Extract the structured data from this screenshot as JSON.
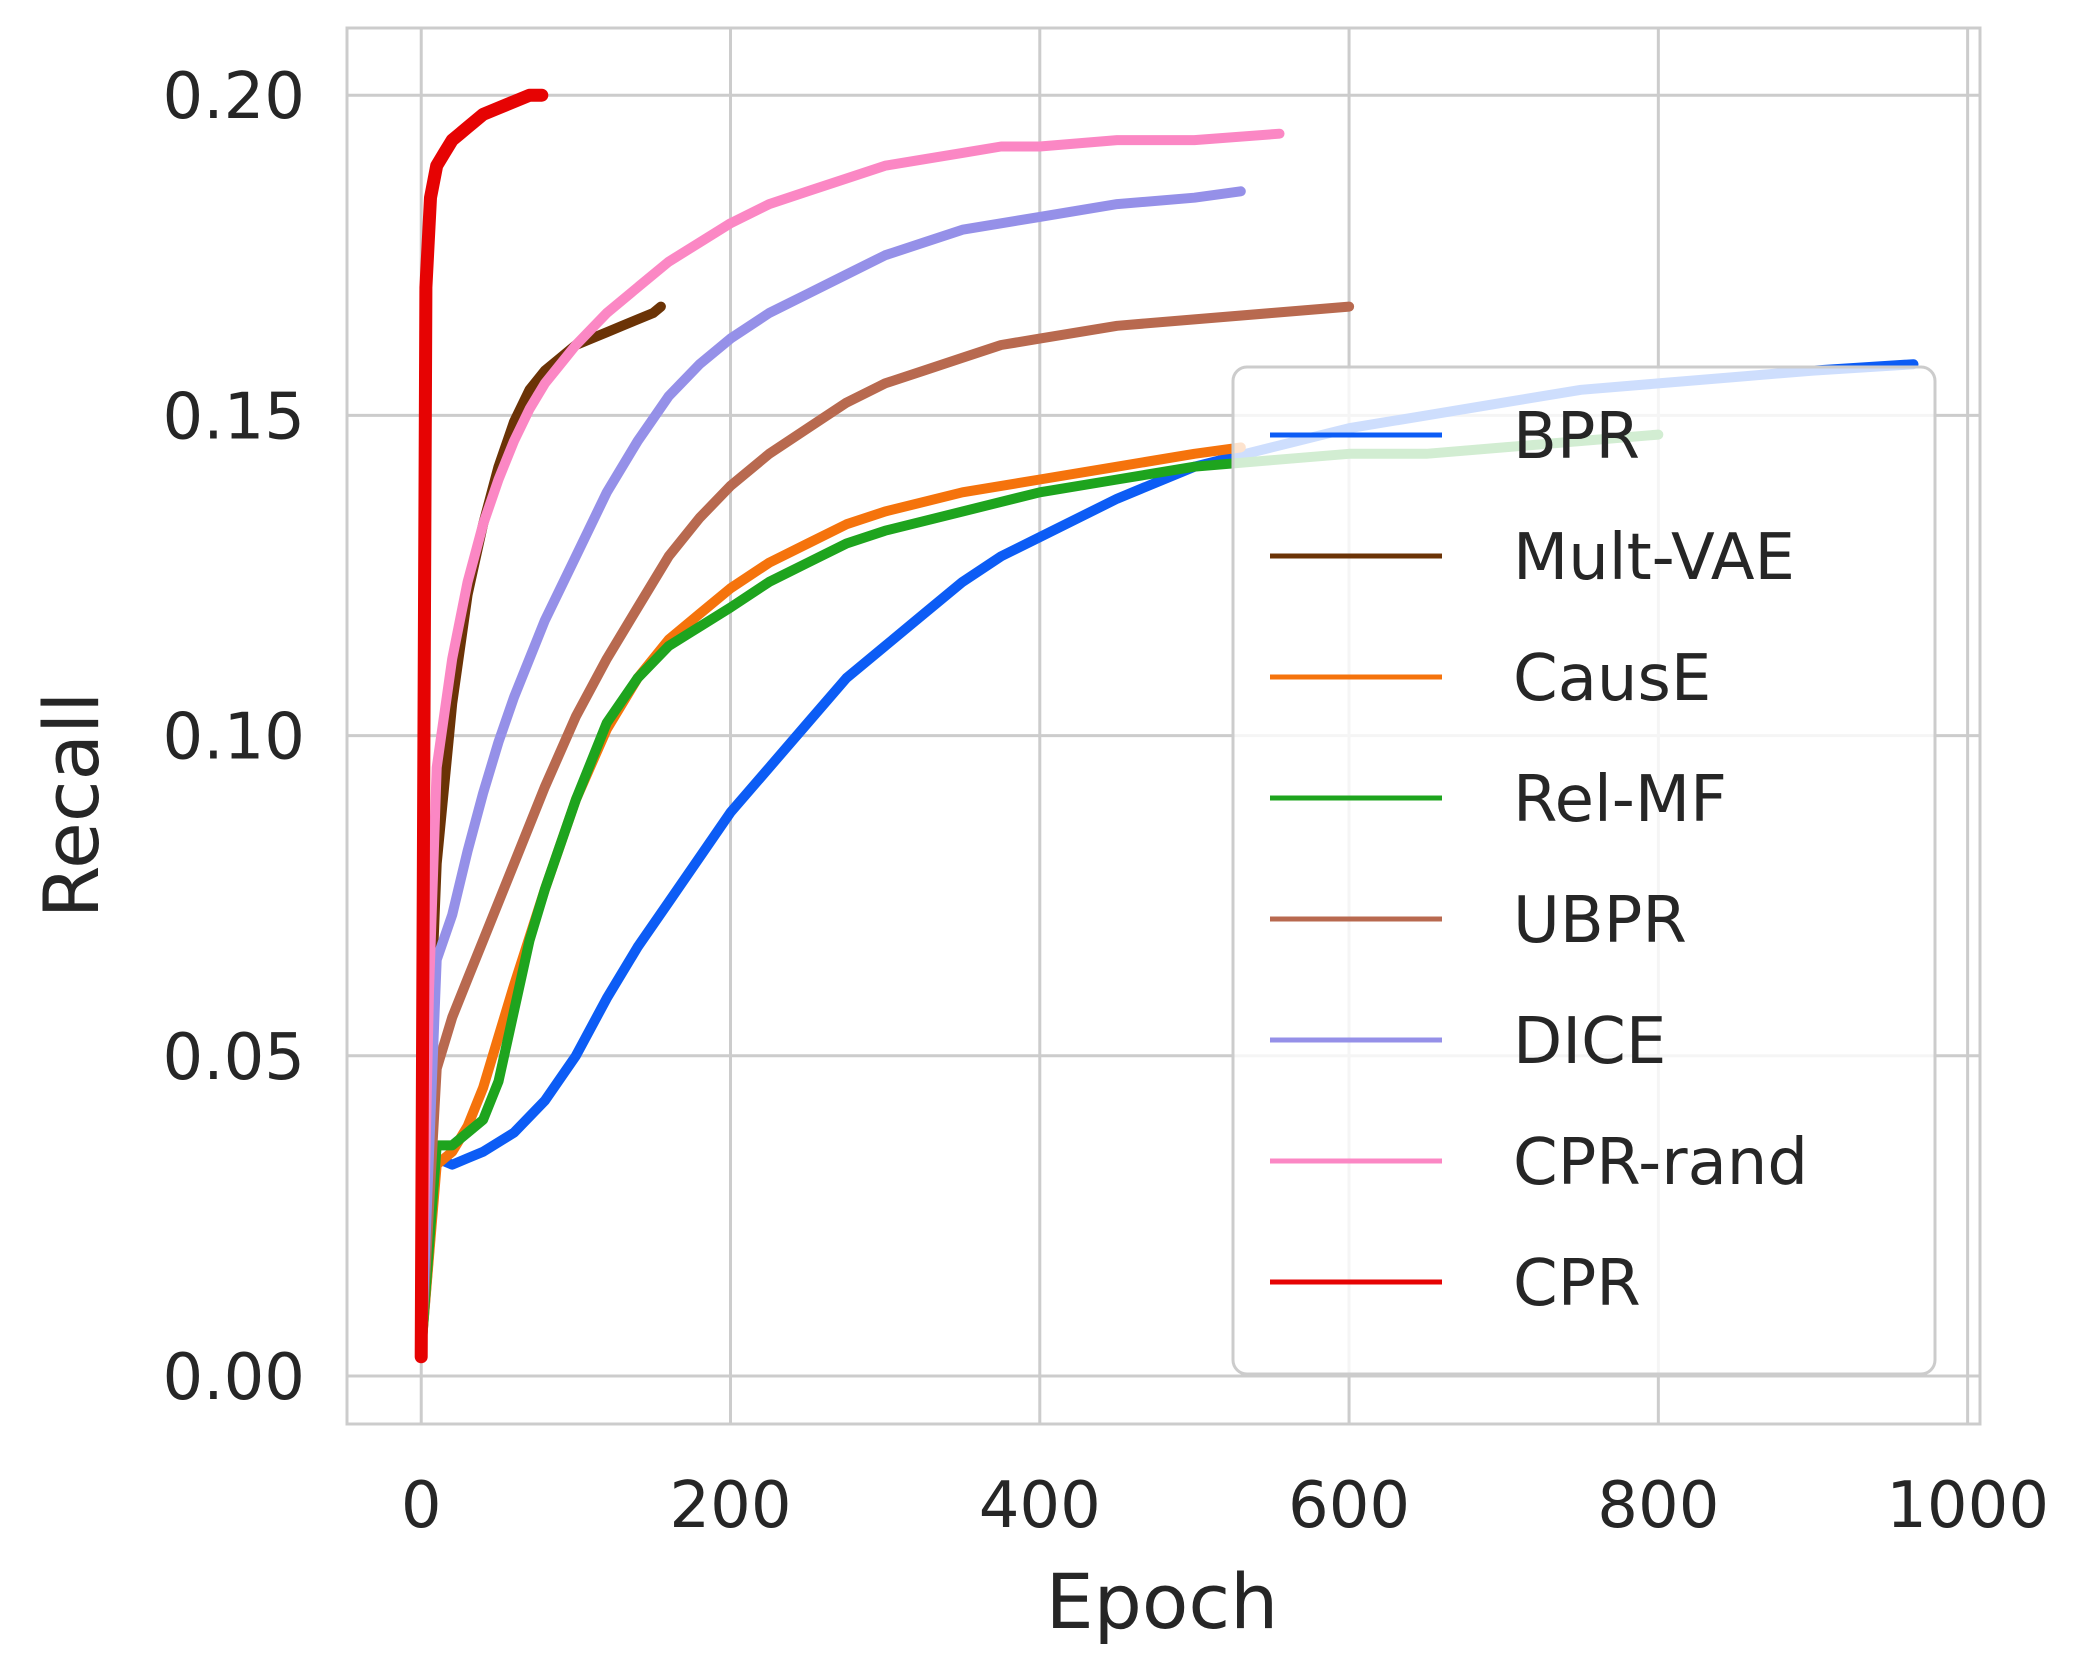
{
  "chart_data": {
    "type": "line",
    "title": "",
    "xlabel": "Epoch",
    "ylabel": "Recall",
    "xlim": [
      -48,
      1008
    ],
    "ylim": [
      -0.0075,
      0.2105
    ],
    "xticks": [
      0,
      200,
      400,
      600,
      800,
      1000
    ],
    "yticks": [
      0.0,
      0.05,
      0.1,
      0.15,
      0.2
    ],
    "xtick_labels": [
      "0",
      "200",
      "400",
      "600",
      "800",
      "1000"
    ],
    "ytick_labels": [
      "0.00",
      "0.05",
      "0.10",
      "0.15",
      "0.20"
    ],
    "grid": true,
    "legend_position": "lower-right",
    "series": [
      {
        "name": "BPR",
        "color": "#0c5cf5",
        "x": [
          0,
          10,
          20,
          30,
          40,
          60,
          80,
          100,
          120,
          140,
          160,
          180,
          200,
          225,
          250,
          275,
          300,
          325,
          350,
          375,
          400,
          450,
          500,
          550,
          600,
          650,
          700,
          750,
          800,
          850,
          900,
          965
        ],
        "y": [
          0.004,
          0.034,
          0.033,
          0.034,
          0.035,
          0.038,
          0.043,
          0.05,
          0.059,
          0.067,
          0.074,
          0.081,
          0.088,
          0.095,
          0.102,
          0.109,
          0.114,
          0.119,
          0.124,
          0.128,
          0.131,
          0.137,
          0.142,
          0.145,
          0.148,
          0.15,
          0.152,
          0.154,
          0.155,
          0.156,
          0.157,
          0.158
        ]
      },
      {
        "name": "Mult-VAE",
        "color": "#6b3306",
        "x": [
          0,
          5,
          10,
          20,
          30,
          40,
          50,
          60,
          70,
          80,
          90,
          100,
          110,
          120,
          130,
          140,
          150,
          155
        ],
        "y": [
          0.004,
          0.05,
          0.08,
          0.105,
          0.122,
          0.133,
          0.142,
          0.149,
          0.154,
          0.157,
          0.159,
          0.161,
          0.162,
          0.163,
          0.164,
          0.165,
          0.166,
          0.167
        ]
      },
      {
        "name": "CausE",
        "color": "#f5730c",
        "x": [
          0,
          10,
          20,
          30,
          40,
          50,
          60,
          80,
          100,
          120,
          140,
          160,
          180,
          200,
          225,
          250,
          275,
          300,
          350,
          400,
          450,
          500,
          530
        ],
        "y": [
          0.004,
          0.033,
          0.035,
          0.039,
          0.045,
          0.053,
          0.061,
          0.076,
          0.09,
          0.101,
          0.109,
          0.115,
          0.119,
          0.123,
          0.127,
          0.13,
          0.133,
          0.135,
          0.138,
          0.14,
          0.142,
          0.144,
          0.145
        ]
      },
      {
        "name": "Rel-MF",
        "color": "#1ea41e",
        "x": [
          0,
          10,
          20,
          30,
          40,
          50,
          60,
          70,
          80,
          100,
          120,
          140,
          160,
          180,
          200,
          225,
          250,
          275,
          300,
          350,
          400,
          450,
          500,
          550,
          600,
          650,
          700,
          750,
          800
        ],
        "y": [
          0.004,
          0.036,
          0.036,
          0.038,
          0.04,
          0.046,
          0.057,
          0.068,
          0.076,
          0.09,
          0.102,
          0.109,
          0.114,
          0.117,
          0.12,
          0.124,
          0.127,
          0.13,
          0.132,
          0.135,
          0.138,
          0.14,
          0.142,
          0.143,
          0.144,
          0.144,
          0.145,
          0.146,
          0.147
        ]
      },
      {
        "name": "UBPR",
        "color": "#b8694f",
        "x": [
          0,
          10,
          20,
          30,
          40,
          60,
          80,
          100,
          120,
          140,
          160,
          180,
          200,
          225,
          250,
          275,
          300,
          325,
          350,
          375,
          400,
          450,
          500,
          550,
          600
        ],
        "y": [
          0.004,
          0.048,
          0.056,
          0.062,
          0.068,
          0.08,
          0.092,
          0.103,
          0.112,
          0.12,
          0.128,
          0.134,
          0.139,
          0.144,
          0.148,
          0.152,
          0.155,
          0.157,
          0.159,
          0.161,
          0.162,
          0.164,
          0.165,
          0.166,
          0.167
        ]
      },
      {
        "name": "DICE",
        "color": "#9590e8",
        "x": [
          0,
          10,
          20,
          30,
          40,
          50,
          60,
          80,
          100,
          120,
          140,
          160,
          180,
          200,
          225,
          250,
          275,
          300,
          325,
          350,
          375,
          400,
          450,
          500,
          530
        ],
        "y": [
          0.004,
          0.065,
          0.072,
          0.082,
          0.091,
          0.099,
          0.106,
          0.118,
          0.128,
          0.138,
          0.146,
          0.153,
          0.158,
          0.162,
          0.166,
          0.169,
          0.172,
          0.175,
          0.177,
          0.179,
          0.18,
          0.181,
          0.183,
          0.184,
          0.185
        ]
      },
      {
        "name": "CPR-rand",
        "color": "#fb87c4",
        "x": [
          0,
          5,
          10,
          20,
          30,
          40,
          50,
          60,
          70,
          80,
          90,
          100,
          120,
          140,
          160,
          180,
          200,
          225,
          250,
          275,
          300,
          325,
          350,
          375,
          400,
          450,
          500,
          555
        ],
        "y": [
          0.004,
          0.06,
          0.095,
          0.112,
          0.124,
          0.133,
          0.14,
          0.146,
          0.151,
          0.155,
          0.158,
          0.161,
          0.166,
          0.17,
          0.174,
          0.177,
          0.18,
          0.183,
          0.185,
          0.187,
          0.189,
          0.19,
          0.191,
          0.192,
          0.192,
          0.193,
          0.193,
          0.194
        ]
      },
      {
        "name": "CPR",
        "color": "#e60303",
        "x": [
          0,
          3,
          6,
          10,
          15,
          20,
          25,
          30,
          40,
          50,
          60,
          70,
          78
        ],
        "y": [
          0.003,
          0.17,
          0.184,
          0.189,
          0.191,
          0.193,
          0.194,
          0.195,
          0.197,
          0.198,
          0.199,
          0.2,
          0.2
        ]
      }
    ]
  }
}
